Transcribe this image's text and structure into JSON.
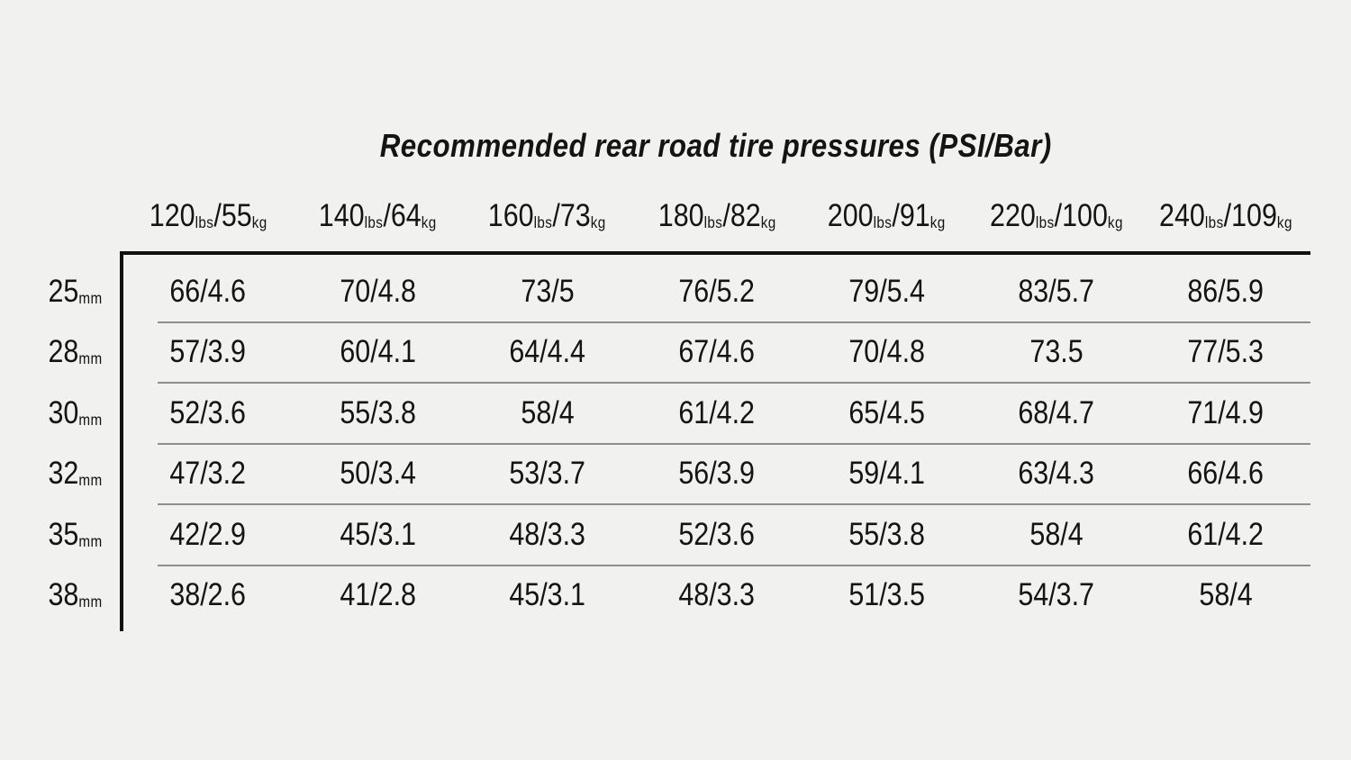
{
  "title": "Recommended rear road tire pressures (PSI/Bar)",
  "colors": {
    "background": "#f1f1ef",
    "text": "#141414",
    "rule_strong": "#111111",
    "rule_light": "#8e8e8e"
  },
  "chart_data": {
    "type": "table",
    "title": "Recommended rear road tire pressures (PSI/Bar)",
    "unit_labels": {
      "lbs": "lbs",
      "kg": "kg",
      "mm": "mm",
      "separator": "/"
    },
    "columns": [
      {
        "lbs": "120",
        "kg": "55"
      },
      {
        "lbs": "140",
        "kg": "64"
      },
      {
        "lbs": "160",
        "kg": "73"
      },
      {
        "lbs": "180",
        "kg": "82"
      },
      {
        "lbs": "200",
        "kg": "91"
      },
      {
        "lbs": "220",
        "kg": "100"
      },
      {
        "lbs": "240",
        "kg": "109"
      }
    ],
    "rows": [
      {
        "tire_width_mm": "25",
        "cells": [
          "66/4.6",
          "70/4.8",
          "73/5",
          "76/5.2",
          "79/5.4",
          "83/5.7",
          "86/5.9"
        ]
      },
      {
        "tire_width_mm": "28",
        "cells": [
          "57/3.9",
          "60/4.1",
          "64/4.4",
          "67/4.6",
          "70/4.8",
          "73.5",
          "77/5.3"
        ]
      },
      {
        "tire_width_mm": "30",
        "cells": [
          "52/3.6",
          "55/3.8",
          "58/4",
          "61/4.2",
          "65/4.5",
          "68/4.7",
          "71/4.9"
        ]
      },
      {
        "tire_width_mm": "32",
        "cells": [
          "47/3.2",
          "50/3.4",
          "53/3.7",
          "56/3.9",
          "59/4.1",
          "63/4.3",
          "66/4.6"
        ]
      },
      {
        "tire_width_mm": "35",
        "cells": [
          "42/2.9",
          "45/3.1",
          "48/3.3",
          "52/3.6",
          "55/3.8",
          "58/4",
          "61/4.2"
        ]
      },
      {
        "tire_width_mm": "38",
        "cells": [
          "38/2.6",
          "41/2.8",
          "45/3.1",
          "48/3.3",
          "51/3.5",
          "54/3.7",
          "58/4"
        ]
      }
    ]
  }
}
